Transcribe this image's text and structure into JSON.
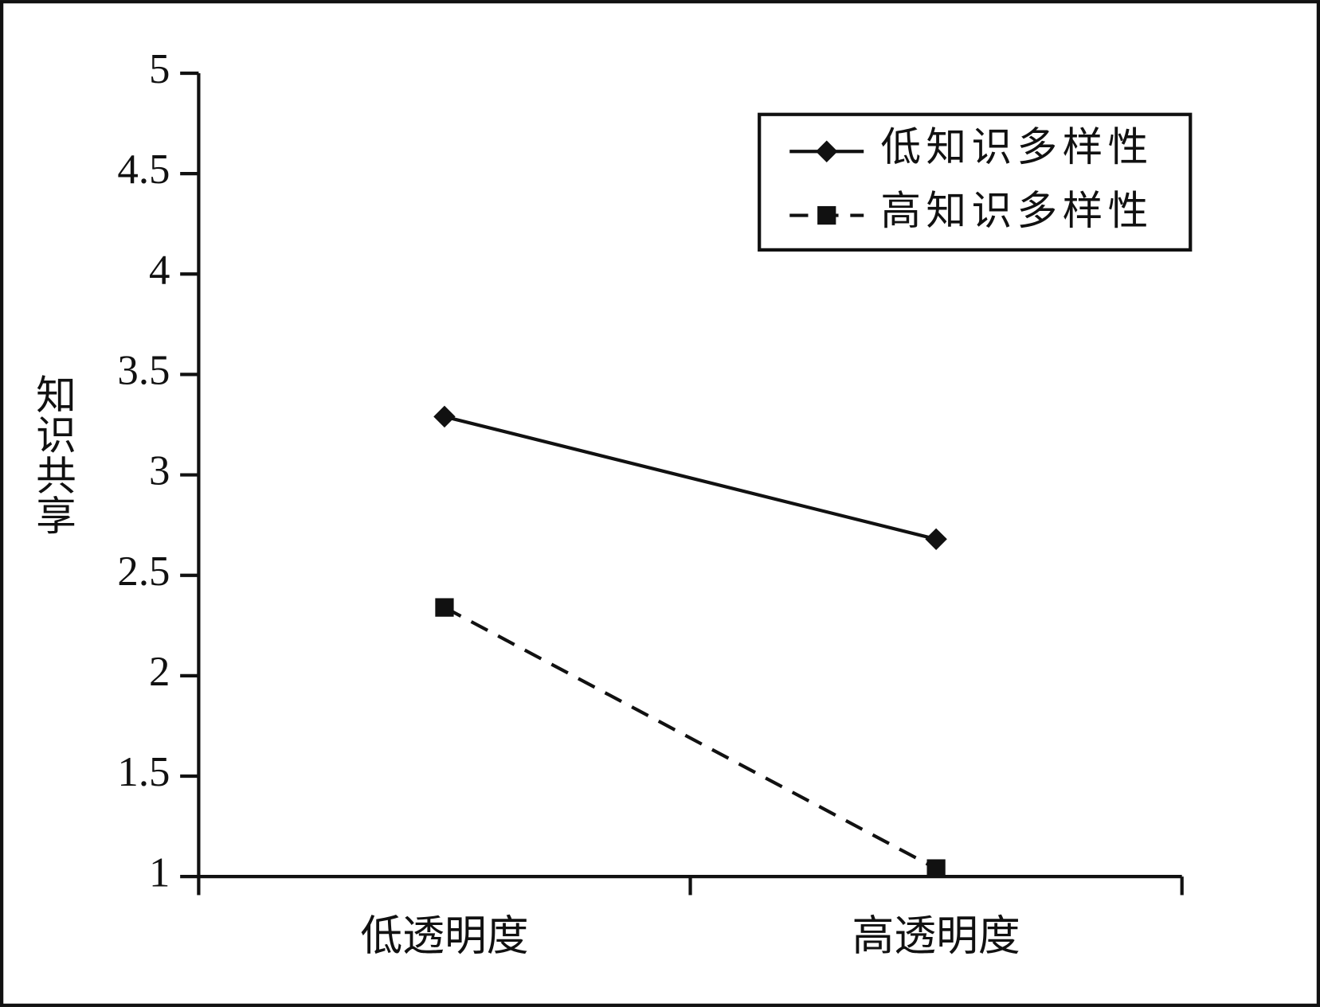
{
  "chart_data": {
    "type": "line",
    "y_label": "知识共享",
    "categories": [
      "低透明度",
      "高透明度"
    ],
    "series": [
      {
        "name": "低知识多样性",
        "color": "#111111",
        "line_style": "solid",
        "marker": "diamond",
        "values": [
          3.29,
          2.68
        ]
      },
      {
        "name": "高知识多样性",
        "color": "#111111",
        "line_style": "dashed",
        "marker": "square",
        "values": [
          2.34,
          1.04
        ]
      }
    ],
    "ylim": [
      1,
      5
    ],
    "yticks": [
      1,
      1.5,
      2,
      2.5,
      3,
      3.5,
      4,
      4.5,
      5
    ],
    "grid": false,
    "legend": "top-right"
  }
}
